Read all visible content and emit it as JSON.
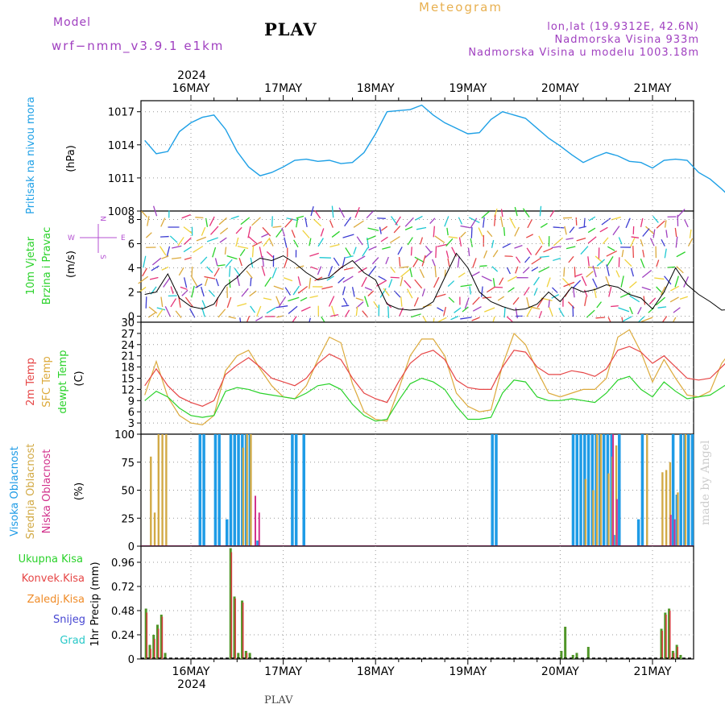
{
  "header": {
    "model_label": "Model",
    "model_value": "wrf−nmm_v3.9.1 e1km",
    "station": "PLAV",
    "title": "Meteogram",
    "coords": "lon,lat (19.9312E, 42.6N)",
    "altitude": "Nadmorska Visina 933m",
    "model_altitude": "Nadmorska Visina u modelu 1003.18m"
  },
  "footer": {
    "station": "PLAV",
    "signature": "made by Angel"
  },
  "colors": {
    "pressure": "#1ea0e6",
    "temp2m": "#e64646",
    "sfc": "#dcaa3c",
    "dewpt": "#2ad22a",
    "high_cloud": "#1e9be6",
    "mid_cloud": "#d2aa46",
    "low_cloud": "#d2328c",
    "precip_total": "#509628",
    "precip_conv": "#d23c3c",
    "precip_frozen": "#f08c28",
    "snow": "#4646d2",
    "graupel": "#28c8c8",
    "wind_label": "#2ad22a",
    "direction": "#b450d2"
  },
  "time_axis": {
    "year": "2024",
    "days": [
      "16MAY",
      "17MAY",
      "18MAY",
      "19MAY",
      "20MAY",
      "21MAY"
    ]
  },
  "compass": {
    "w": "W",
    "n": "N",
    "e": "E",
    "s": "S"
  },
  "chart_data": [
    {
      "id": "pressure",
      "type": "line",
      "ylabel_main": "Pritisak na nivou mora",
      "unit": "(hPa)",
      "ylim": [
        1008,
        1018
      ],
      "yticks": [
        1008,
        1011,
        1014,
        1017
      ],
      "x_unit": "hours from 16MAY 00UTC",
      "x": [
        -12,
        -9,
        -6,
        -3,
        0,
        3,
        6,
        9,
        12,
        15,
        18,
        21,
        24,
        27,
        30,
        33,
        36,
        39,
        42,
        45,
        48,
        51,
        54,
        57,
        60,
        63,
        66,
        69,
        72,
        75,
        78,
        81,
        84,
        87,
        90,
        93,
        96,
        99,
        102,
        105,
        108,
        111,
        114,
        117,
        120,
        123,
        126,
        129,
        132,
        135,
        138,
        141,
        144
      ],
      "series": [
        {
          "values": [
            1014.4,
            1013.2,
            1013.4,
            1015.2,
            1016.0,
            1016.5,
            1016.7,
            1015.4,
            1013.4,
            1012.0,
            1011.2,
            1011.5,
            1012.0,
            1012.6,
            1012.7,
            1012.5,
            1012.6,
            1012.3,
            1012.4,
            1013.3,
            1015.0,
            1017.0,
            1017.1,
            1017.2,
            1017.6,
            1016.7,
            1016.0,
            1015.5,
            1015.0,
            1015.1,
            1016.3,
            1017.0,
            1016.7,
            1016.4,
            1015.5,
            1014.6,
            1013.9,
            1013.1,
            1012.4,
            1012.9,
            1013.3,
            1013.0,
            1012.5,
            1012.4,
            1011.9,
            1012.6,
            1012.7,
            1012.6,
            1011.5,
            1010.9,
            1010.0,
            1009.0,
            1008.3
          ]
        }
      ]
    },
    {
      "id": "wind",
      "type": "line",
      "ylabel_main": "10m Vjetar",
      "ylabel_sub": "Brzina i Pravac",
      "unit": "(m/s)",
      "ylim": [
        -0.5,
        8.7
      ],
      "yticks": [
        0,
        2,
        4,
        6,
        8
      ],
      "x_unit": "hours from 16MAY 00UTC",
      "x": [
        -12,
        -9,
        -6,
        -3,
        0,
        3,
        6,
        9,
        12,
        15,
        18,
        21,
        24,
        27,
        30,
        33,
        36,
        39,
        42,
        45,
        48,
        51,
        54,
        57,
        60,
        63,
        66,
        69,
        72,
        75,
        78,
        81,
        84,
        87,
        90,
        93,
        96,
        99,
        102,
        105,
        108,
        111,
        114,
        117,
        120,
        123,
        126,
        129,
        132,
        135,
        138,
        141,
        144
      ],
      "series": [
        {
          "name": "speed",
          "values": [
            1.8,
            2.0,
            3.5,
            1.5,
            0.8,
            0.6,
            1.0,
            2.5,
            3.2,
            4.2,
            4.8,
            4.6,
            5.0,
            4.4,
            3.6,
            3.0,
            3.2,
            4.0,
            4.6,
            3.6,
            3.0,
            1.0,
            0.6,
            0.5,
            0.6,
            1.2,
            3.2,
            5.2,
            4.0,
            2.0,
            1.2,
            0.8,
            0.5,
            0.6,
            1.0,
            2.0,
            1.2,
            2.4,
            2.0,
            2.2,
            2.6,
            2.4,
            1.8,
            1.5,
            0.6,
            2.0,
            4.0,
            2.6,
            1.8,
            1.2,
            0.5,
            0.6,
            4.8
          ]
        }
      ],
      "wind_barbs": "dense colored direction arrows filling panel (wind direction/speed by height)"
    },
    {
      "id": "temperature",
      "type": "line",
      "label_temp": "2m Temp",
      "label_sfc": "SFC Temp",
      "label_dew": "dewpt Temp",
      "unit": "(C)",
      "ylim": [
        0,
        30
      ],
      "yticks": [
        0,
        3,
        6,
        9,
        12,
        15,
        18,
        21,
        24,
        27,
        30
      ],
      "x_unit": "hours from 16MAY 00UTC",
      "x": [
        -12,
        -9,
        -6,
        -3,
        0,
        3,
        6,
        9,
        12,
        15,
        18,
        21,
        24,
        27,
        30,
        33,
        36,
        39,
        42,
        45,
        48,
        51,
        54,
        57,
        60,
        63,
        66,
        69,
        72,
        75,
        78,
        81,
        84,
        87,
        90,
        93,
        96,
        99,
        102,
        105,
        108,
        111,
        114,
        117,
        120,
        123,
        126,
        129,
        132,
        135,
        138,
        141,
        144
      ],
      "series": [
        {
          "name": "2m Temp",
          "values": [
            13.0,
            17.5,
            13.0,
            10.0,
            8.5,
            7.5,
            9.0,
            16.0,
            18.5,
            20.5,
            18.0,
            15.0,
            14.0,
            13.0,
            15.0,
            19.0,
            21.5,
            20.0,
            15.0,
            11.0,
            9.5,
            8.5,
            14.0,
            19.0,
            21.5,
            22.5,
            20.0,
            14.5,
            12.5,
            12.0,
            12.0,
            18.0,
            22.5,
            22.0,
            18.0,
            16.0,
            16.0,
            17.0,
            16.5,
            15.5,
            17.5,
            22.5,
            23.5,
            22.0,
            19.0,
            21.0,
            18.0,
            15.0,
            14.5,
            15.0,
            18.0,
            21.0,
            22.0
          ]
        },
        {
          "name": "SFC Temp",
          "values": [
            10.5,
            19.5,
            10.0,
            5.0,
            3.0,
            2.5,
            5.0,
            17.0,
            21.0,
            22.5,
            17.5,
            13.0,
            10.0,
            9.5,
            13.0,
            20.0,
            26.0,
            24.5,
            13.5,
            6.0,
            4.0,
            3.5,
            12.0,
            21.0,
            25.5,
            25.5,
            21.0,
            11.0,
            7.5,
            6.0,
            6.5,
            18.5,
            27.0,
            24.0,
            17.0,
            11.0,
            10.0,
            11.0,
            12.0,
            12.0,
            15.0,
            26.0,
            28.0,
            22.0,
            14.0,
            20.0,
            15.0,
            10.5,
            10.0,
            11.5,
            19.0,
            23.0,
            26.0
          ]
        },
        {
          "name": "dewpt Temp",
          "values": [
            9.0,
            11.5,
            10.0,
            7.0,
            5.0,
            4.5,
            5.0,
            11.5,
            12.5,
            12.0,
            11.0,
            10.5,
            10.0,
            9.5,
            11.0,
            13.0,
            13.5,
            12.0,
            8.0,
            5.0,
            3.5,
            4.0,
            9.0,
            13.5,
            15.0,
            14.0,
            12.0,
            7.5,
            4.0,
            4.0,
            4.5,
            11.0,
            14.5,
            14.0,
            10.0,
            9.0,
            9.0,
            9.5,
            9.0,
            8.5,
            11.0,
            14.5,
            15.5,
            12.0,
            10.0,
            14.0,
            11.5,
            9.5,
            10.0,
            10.5,
            12.5,
            14.5,
            12.0
          ]
        }
      ]
    },
    {
      "id": "clouds",
      "type": "bar",
      "label_high": "Visoka Oblacnost",
      "label_mid": "Srednja Oblacnost",
      "label_low": "Niska Oblacnost",
      "unit": "(%)",
      "ylim": [
        0,
        100
      ],
      "yticks": [
        0,
        25,
        50,
        75,
        100
      ],
      "x_unit": "hours from 16MAY 00UTC",
      "series": [
        {
          "name": "Visoka Oblacnost",
          "x": [
            2,
            3,
            6,
            7,
            9,
            10,
            11,
            12,
            13,
            14,
            15,
            17,
            26,
            27,
            29,
            78,
            79,
            99,
            100,
            101,
            102,
            103,
            104,
            105,
            106,
            107,
            108,
            109,
            110,
            111,
            116,
            117,
            125,
            126,
            127,
            128,
            129,
            130,
            131,
            132,
            133,
            134,
            135,
            136,
            137,
            138,
            139,
            140,
            141,
            142,
            143
          ],
          "values": [
            100,
            100,
            100,
            100,
            24,
            100,
            100,
            100,
            100,
            100,
            100,
            5,
            100,
            100,
            100,
            100,
            100,
            100,
            100,
            100,
            100,
            100,
            100,
            100,
            100,
            100,
            100,
            100,
            10,
            100,
            24,
            100,
            100,
            46,
            100,
            100,
            100,
            100,
            100,
            100,
            100,
            100,
            100,
            100,
            100,
            100,
            100,
            100,
            100,
            100,
            100
          ]
        },
        {
          "name": "Srednja Oblacnost",
          "x": [
            -11,
            -10,
            -9,
            -8,
            -7,
            13,
            14,
            15,
            102,
            104,
            105,
            106,
            108,
            109,
            110,
            118,
            122,
            123,
            124,
            126,
            128,
            130,
            132,
            134,
            136,
            138,
            140,
            142
          ],
          "values": [
            80,
            30,
            100,
            100,
            100,
            88,
            100,
            100,
            60,
            50,
            100,
            100,
            65,
            80,
            90,
            100,
            66,
            68,
            75,
            48,
            100,
            100,
            100,
            100,
            100,
            100,
            100,
            100
          ]
        },
        {
          "name": "Niska Oblacnost",
          "x": [
            16,
            17,
            109,
            110,
            124,
            125,
            134,
            135
          ],
          "values": [
            45,
            30,
            100,
            42,
            28,
            24,
            100,
            100
          ]
        }
      ]
    },
    {
      "id": "precip",
      "type": "bar",
      "label_total": "Ukupna Kisa",
      "label_conv": "Konvek.Kisa",
      "label_frozen": "Zaledj.Kisa",
      "label_snow": "Snijeg",
      "label_grad": "Grad",
      "unit": "1hr Precip (mm)",
      "ylim": [
        0,
        1.12
      ],
      "yticks": [
        0,
        0.24,
        0.48,
        0.72,
        0.96
      ],
      "x_unit": "hours from 16MAY 00UTC",
      "series": [
        {
          "name": "Ukupna Kisa",
          "x": [
            -12,
            -11,
            -10,
            -9,
            -8,
            -7,
            10,
            11,
            12,
            13,
            14,
            15,
            96,
            97,
            99,
            100,
            103,
            122,
            123,
            124,
            125,
            126,
            127,
            136,
            137,
            138,
            139,
            140
          ],
          "values": [
            0.5,
            0.14,
            0.24,
            0.34,
            0.44,
            0.06,
            1.1,
            0.62,
            0.06,
            0.58,
            0.08,
            0.06,
            0.08,
            0.32,
            0.04,
            0.06,
            0.12,
            0.3,
            0.46,
            0.5,
            0.08,
            0.14,
            0.04,
            0.24,
            0.66,
            0.64,
            0.26,
            0.24
          ]
        },
        {
          "name": "Konvek.Kisa",
          "x": [
            -12,
            -11,
            -10,
            -9,
            -8,
            10,
            11,
            13,
            14,
            122,
            123,
            124,
            125,
            126,
            137,
            138,
            139,
            140
          ],
          "values": [
            0.46,
            0.1,
            0.2,
            0.3,
            0.42,
            1.06,
            0.6,
            0.56,
            0.06,
            0.28,
            0.44,
            0.48,
            0.06,
            0.12,
            0.62,
            0.6,
            0.22,
            0.2
          ]
        },
        {
          "name": "Grad",
          "x": [
            133
          ],
          "values": [
            0.14
          ]
        }
      ]
    }
  ]
}
